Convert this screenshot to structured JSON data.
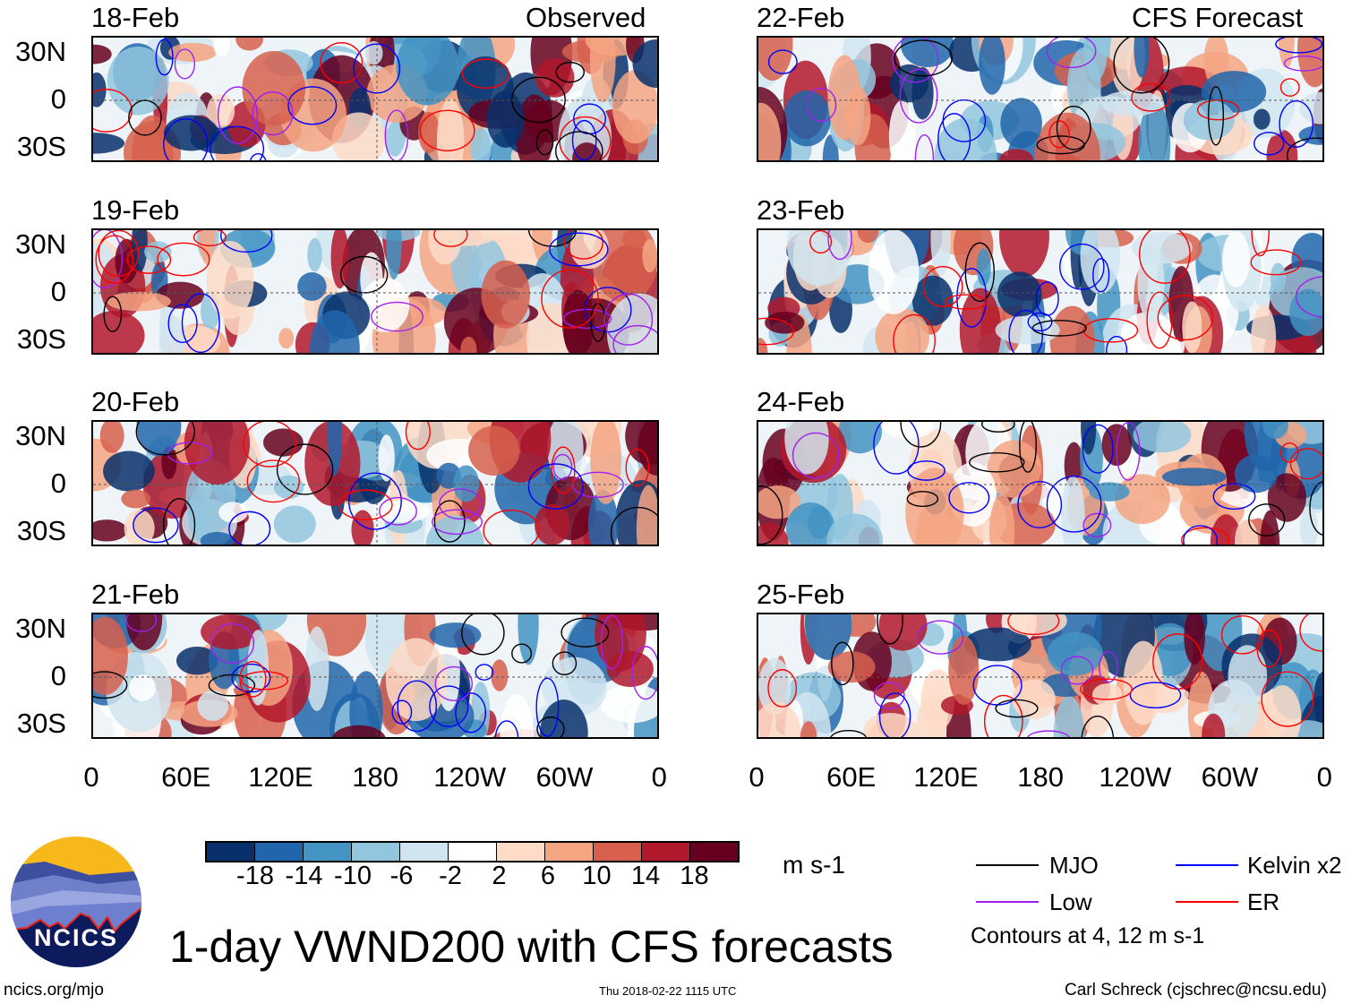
{
  "title": "1-day VWND200 with CFS forecasts",
  "observed_label": "Observed",
  "forecast_label": "CFS Forecast",
  "panels": {
    "observed": [
      "18-Feb",
      "19-Feb",
      "20-Feb",
      "21-Feb"
    ],
    "forecast": [
      "22-Feb",
      "23-Feb",
      "24-Feb",
      "25-Feb"
    ]
  },
  "lat_labels": [
    "30N",
    "0",
    "30S"
  ],
  "lon_labels": [
    "0",
    "60E",
    "120E",
    "180",
    "120W",
    "60W",
    "0"
  ],
  "colorbar": {
    "colors": [
      "#08306b",
      "#2166ac",
      "#4393c3",
      "#92c5de",
      "#d1e5f0",
      "#ffffff",
      "#fddbc7",
      "#f4a582",
      "#d6604d",
      "#b2182b",
      "#67001f"
    ],
    "labels": [
      "-18",
      "-14",
      "-10",
      "-6",
      "-2",
      "2",
      "6",
      "10",
      "14",
      "18"
    ],
    "units": "m s-1"
  },
  "legend": {
    "items": [
      {
        "label": "MJO",
        "color": "#000000"
      },
      {
        "label": "Kelvin x2",
        "color": "#0000ff"
      },
      {
        "label": "Low",
        "color": "#a020f0"
      },
      {
        "label": "ER",
        "color": "#ff0000"
      }
    ],
    "note": "Contours at 4, 12 m s-1"
  },
  "logo": {
    "text": "NCICS"
  },
  "footer": {
    "url": "ncics.org/mjo",
    "timestamp": "Thu 2018-02-22 1115 UTC",
    "credit": "Carl Schreck (cjschrec@ncsu.edu)"
  }
}
